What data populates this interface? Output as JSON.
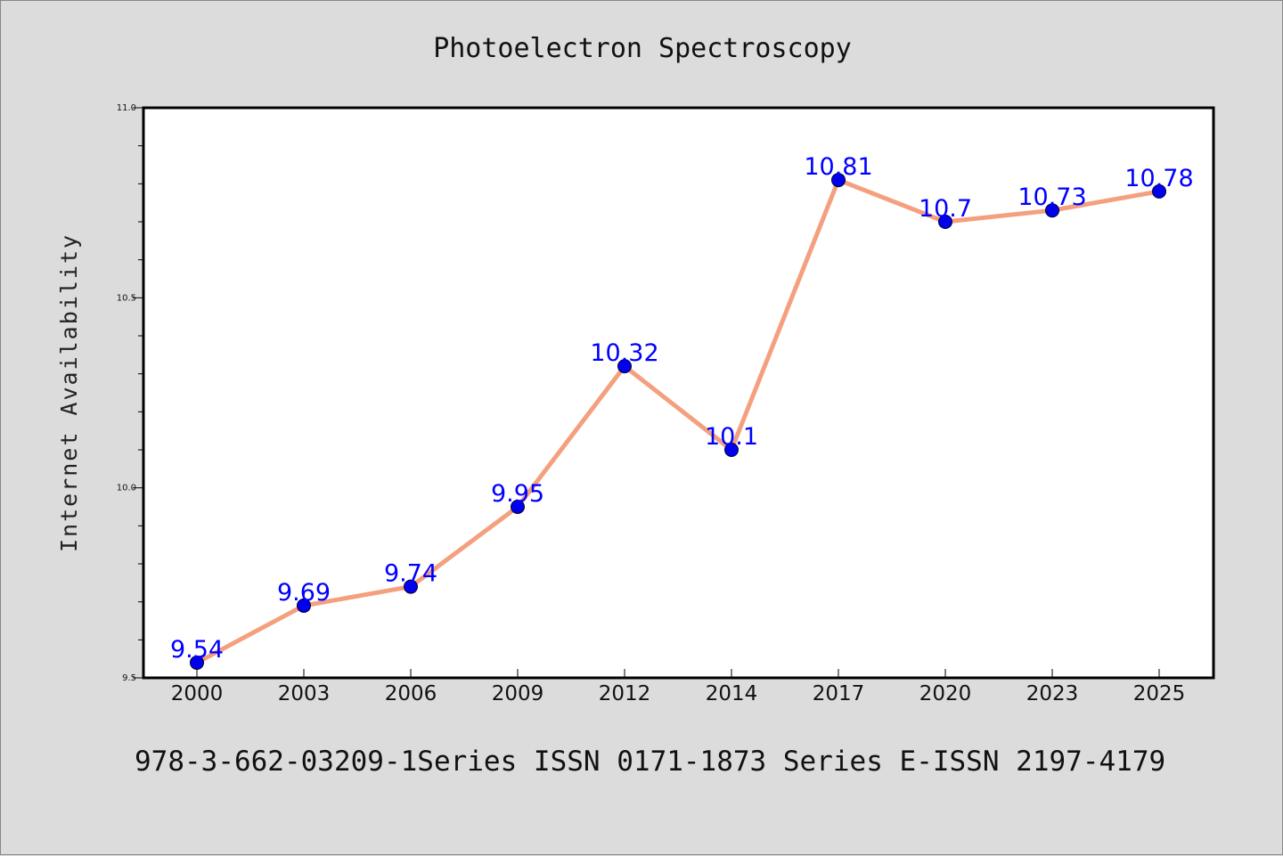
{
  "chart_data": {
    "type": "line",
    "title": "Photoelectron Spectroscopy",
    "ylabel": "Internet Availability",
    "xlabel": "",
    "categories": [
      "2000",
      "2003",
      "2006",
      "2009",
      "2012",
      "2014",
      "2017",
      "2020",
      "2023",
      "2025"
    ],
    "series": [
      {
        "values": [
          9.54,
          9.69,
          9.74,
          9.95,
          10.32,
          10.1,
          10.81,
          10.7,
          10.73,
          10.78
        ]
      }
    ],
    "data_labels": [
      "9.54",
      "9.69",
      "9.74",
      "9.95",
      "10.32",
      "10.1",
      "10.81",
      "10.7",
      "10.73",
      "10.78"
    ],
    "ylim": [
      9.5,
      11.0
    ],
    "yticks": [
      "9.5",
      "10.0",
      "10.5",
      "11.0"
    ],
    "grid": false,
    "colors": {
      "line": "#f4a07e",
      "marker": "#0000ee",
      "label": "#0000ff",
      "background": "#dcdcdc",
      "plot_background": "#ffffff"
    }
  },
  "footer": {
    "text": "978-3-662-03209-1Series ISSN 0171-1873 Series E-ISSN 2197-4179"
  }
}
